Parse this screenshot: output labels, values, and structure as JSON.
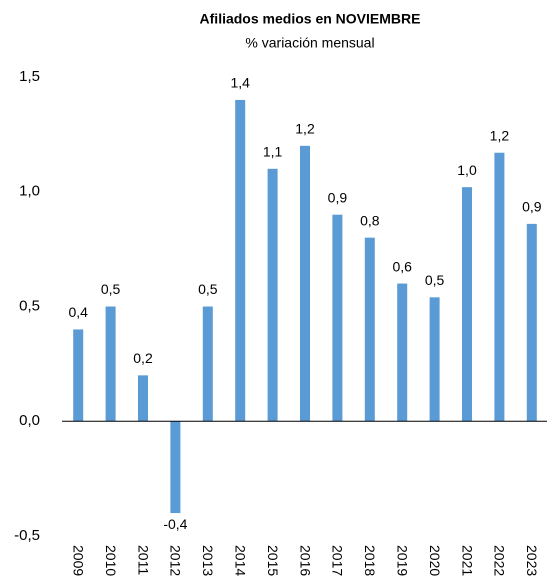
{
  "chart_data": {
    "type": "bar",
    "title": "Afiliados medios en NOVIEMBRE",
    "subtitle": "% variación mensual",
    "categories": [
      "2009",
      "2010",
      "2011",
      "2012",
      "2013",
      "2014",
      "2015",
      "2016",
      "2017",
      "2018",
      "2019",
      "2020",
      "2021",
      "2022",
      "2023"
    ],
    "values": [
      0.4,
      0.5,
      0.2,
      -0.4,
      0.5,
      1.4,
      1.1,
      1.2,
      0.9,
      0.8,
      0.6,
      0.54,
      1.02,
      1.17,
      0.86
    ],
    "value_labels": [
      "0,4",
      "0,5",
      "0,2",
      "-0,4",
      "0,5",
      "1,4",
      "1,1",
      "1,2",
      "0,9",
      "0,8",
      "0,6",
      "0,5",
      "1,0",
      "1,2",
      "0,9"
    ],
    "color": "#5b9bd5",
    "label_color": "#000000",
    "negative_label_color": "#ff0000",
    "ylim": [
      -0.5,
      1.5
    ],
    "yticks": [
      {
        "value": -0.5,
        "label": "-0,5"
      },
      {
        "value": 0,
        "label": "0,0"
      },
      {
        "value": 0.5,
        "label": "0,5"
      },
      {
        "value": 1.0,
        "label": "1,0"
      },
      {
        "value": 1.5,
        "label": "1,5"
      }
    ],
    "grid": false
  }
}
